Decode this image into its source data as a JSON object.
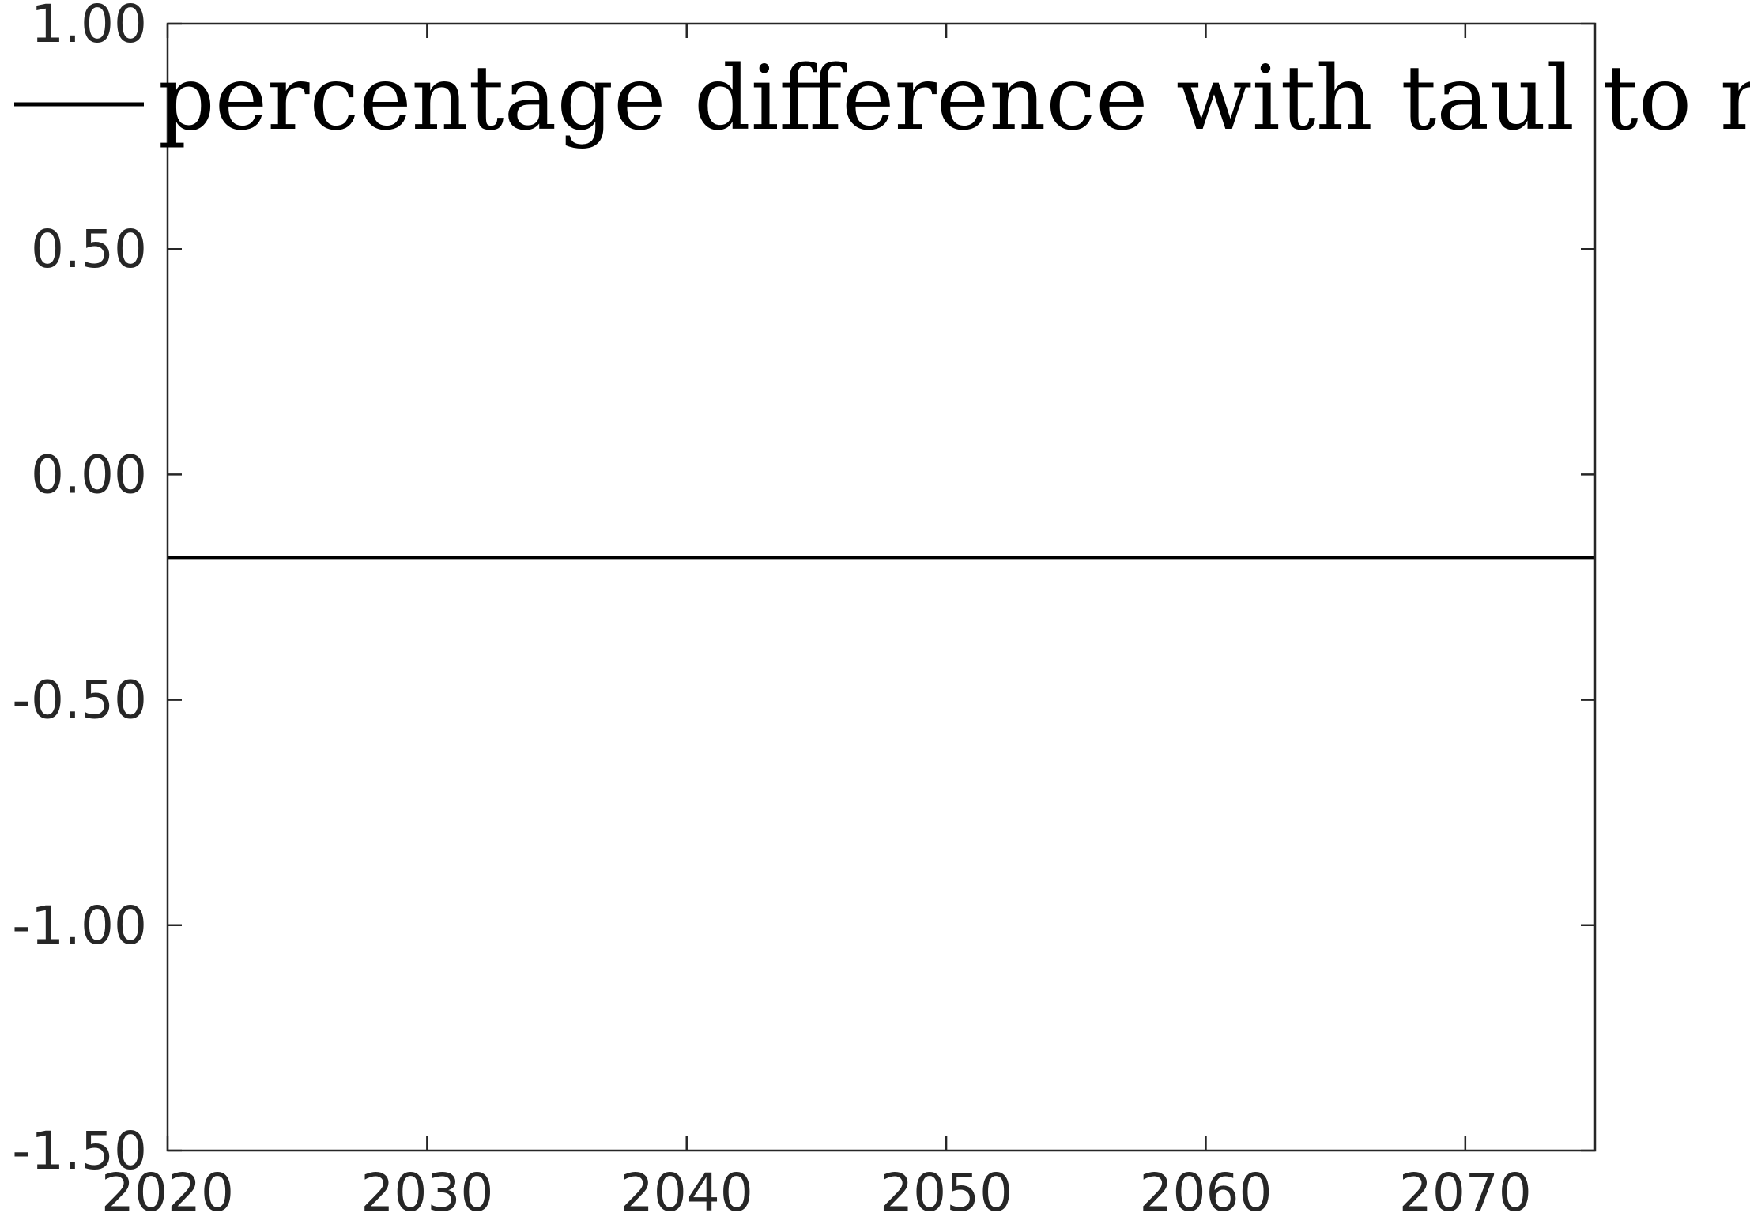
{
  "chart_data": {
    "type": "line",
    "title": "",
    "xlabel": "",
    "ylabel": "",
    "xlim": [
      2020,
      2075
    ],
    "ylim": [
      -1.5,
      1.0
    ],
    "x_ticks": [
      2020,
      2030,
      2040,
      2050,
      2060,
      2070
    ],
    "x_tick_labels": [
      "2020",
      "2030",
      "2040",
      "2050",
      "2060",
      "2070"
    ],
    "y_ticks": [
      1.0,
      0.5,
      0.0,
      -0.5,
      -1.0,
      -1.5
    ],
    "y_tick_labels": [
      "1.00",
      "0.50",
      "0.00",
      "-0.50",
      "-1.00",
      "-1.50"
    ],
    "grid": false,
    "legend_position": "top",
    "series": [
      {
        "name": "percentage difference with taul to no taul",
        "color": "#000000",
        "x": [
          2020,
          2075
        ],
        "y": [
          -0.185,
          -0.185
        ]
      }
    ]
  }
}
